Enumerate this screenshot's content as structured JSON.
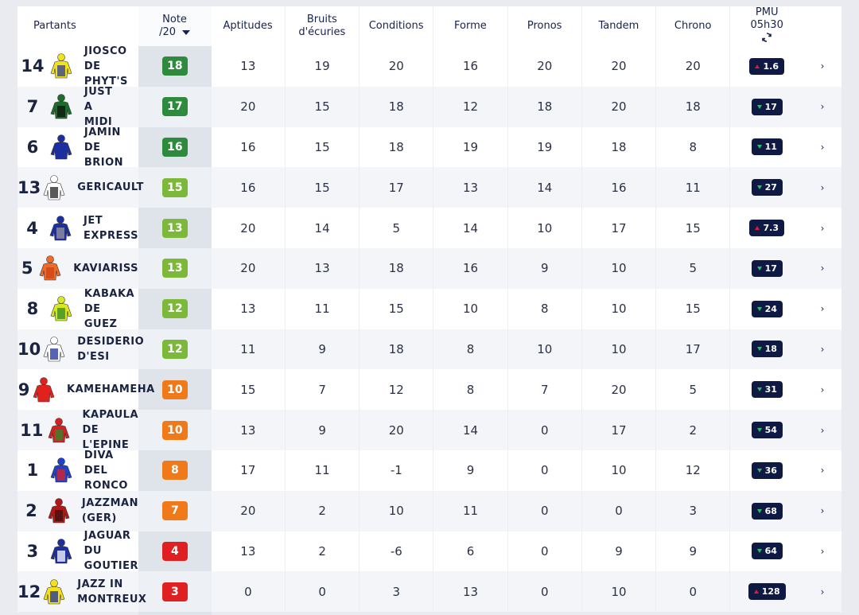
{
  "header": {
    "partants": "Partants",
    "note_line1": "Note",
    "note_line2": "/20",
    "aptitudes": "Aptitudes",
    "bruits_line1": "Bruits",
    "bruits_line2": "d'écuries",
    "conditions": "Conditions",
    "forme": "Forme",
    "pronos": "Pronos",
    "tandem": "Tandem",
    "chrono": "Chrono",
    "pmu_line1": "PMU",
    "pmu_line2": "05h30",
    "refresh_icon": "refresh-icon"
  },
  "colors": {
    "note_dark_green": "#2e8b3e",
    "note_light_green": "#7cb83a",
    "note_orange": "#f07a1a",
    "note_red": "#e02020",
    "odds_bg": "#0f1a44",
    "up": "#e3163b",
    "down": "#2dbb6e"
  },
  "rows": [
    {
      "num": "14",
      "name": "JIOSCO\nDE\nPHYT'S",
      "note": "18",
      "note_color": "#2e8b3e",
      "apt": "13",
      "bruits": "19",
      "cond": "20",
      "forme": "16",
      "pronos": "20",
      "tandem": "20",
      "chrono": "20",
      "odds": "1.6",
      "trend": "up",
      "silk": [
        "#f3e21a",
        "#2c3a9a"
      ]
    },
    {
      "num": "7",
      "name": "JUST\nA\nMIDI",
      "note": "17",
      "note_color": "#2e8b3e",
      "apt": "20",
      "bruits": "15",
      "cond": "18",
      "forme": "12",
      "pronos": "18",
      "tandem": "20",
      "chrono": "18",
      "odds": "17",
      "trend": "down",
      "silk": [
        "#1f6b2e",
        "#111111"
      ]
    },
    {
      "num": "6",
      "name": "JAMIN\nDE\nBRION",
      "note": "16",
      "note_color": "#2e8b3e",
      "apt": "16",
      "bruits": "15",
      "cond": "18",
      "forme": "19",
      "pronos": "19",
      "tandem": "18",
      "chrono": "8",
      "odds": "11",
      "trend": "down",
      "silk": [
        "#1d2f9e",
        "#1d2f9e"
      ]
    },
    {
      "num": "13",
      "name": "GERICAULT",
      "note": "15",
      "note_color": "#7cb83a",
      "apt": "16",
      "bruits": "15",
      "cond": "17",
      "forme": "13",
      "pronos": "14",
      "tandem": "16",
      "chrono": "11",
      "odds": "27",
      "trend": "down",
      "silk": [
        "#ffffff",
        "#222222"
      ]
    },
    {
      "num": "4",
      "name": "JET\nEXPRESS",
      "note": "13",
      "note_color": "#7cb83a",
      "apt": "20",
      "bruits": "14",
      "cond": "5",
      "forme": "14",
      "pronos": "10",
      "tandem": "17",
      "chrono": "15",
      "odds": "7.3",
      "trend": "up",
      "silk": [
        "#1d2f9e",
        "#9a9a9a"
      ]
    },
    {
      "num": "5",
      "name": "KAVIARISS",
      "note": "13",
      "note_color": "#7cb83a",
      "apt": "20",
      "bruits": "13",
      "cond": "18",
      "forme": "16",
      "pronos": "9",
      "tandem": "10",
      "chrono": "5",
      "odds": "17",
      "trend": "down",
      "silk": [
        "#f06a2a",
        "#c94515"
      ]
    },
    {
      "num": "8",
      "name": "KABAKA\nDE\nGUEZ",
      "note": "12",
      "note_color": "#7cb83a",
      "apt": "13",
      "bruits": "11",
      "cond": "15",
      "forme": "10",
      "pronos": "8",
      "tandem": "10",
      "chrono": "15",
      "odds": "24",
      "trend": "down",
      "silk": [
        "#d8e820",
        "#2c8a2c"
      ]
    },
    {
      "num": "10",
      "name": "DESIDERIO\nD'ESI",
      "note": "12",
      "note_color": "#7cb83a",
      "apt": "11",
      "bruits": "9",
      "cond": "18",
      "forme": "8",
      "pronos": "10",
      "tandem": "10",
      "chrono": "17",
      "odds": "18",
      "trend": "down",
      "silk": [
        "#ffffff",
        "#1d2f9e"
      ]
    },
    {
      "num": "9",
      "name": "KAMEHAMEHA",
      "note": "10",
      "note_color": "#f07a1a",
      "apt": "15",
      "bruits": "7",
      "cond": "12",
      "forme": "8",
      "pronos": "7",
      "tandem": "20",
      "chrono": "5",
      "odds": "31",
      "trend": "down",
      "silk": [
        "#e0221e",
        "#e0221e"
      ]
    },
    {
      "num": "11",
      "name": "KAPAULA\nDE\nL'EPINE",
      "note": "10",
      "note_color": "#f07a1a",
      "apt": "13",
      "bruits": "9",
      "cond": "20",
      "forme": "14",
      "pronos": "0",
      "tandem": "17",
      "chrono": "2",
      "odds": "54",
      "trend": "down",
      "silk": [
        "#d42020",
        "#2c8a2c"
      ]
    },
    {
      "num": "1",
      "name": "DIVA\nDEL\nRONCO",
      "note": "8",
      "note_color": "#f07a1a",
      "apt": "17",
      "bruits": "11",
      "cond": "-1",
      "forme": "9",
      "pronos": "0",
      "tandem": "10",
      "chrono": "12",
      "odds": "36",
      "trend": "down",
      "silk": [
        "#2040c8",
        "#e0221e"
      ]
    },
    {
      "num": "2",
      "name": "JAZZMAN\n(GER)",
      "note": "7",
      "note_color": "#f07a1a",
      "apt": "20",
      "bruits": "2",
      "cond": "10",
      "forme": "11",
      "pronos": "0",
      "tandem": "0",
      "chrono": "3",
      "odds": "68",
      "trend": "down",
      "silk": [
        "#b01818",
        "#3a1010"
      ]
    },
    {
      "num": "3",
      "name": "JAGUAR\nDU\nGOUTIER",
      "note": "4",
      "note_color": "#e02020",
      "apt": "13",
      "bruits": "2",
      "cond": "-6",
      "forme": "6",
      "pronos": "0",
      "tandem": "9",
      "chrono": "9",
      "odds": "64",
      "trend": "down",
      "silk": [
        "#1d2f9e",
        "#ffffff"
      ]
    },
    {
      "num": "12",
      "name": "JAZZ IN\nMONTREUX",
      "note": "3",
      "note_color": "#e02020",
      "apt": "0",
      "bruits": "0",
      "cond": "3",
      "forme": "13",
      "pronos": "0",
      "tandem": "10",
      "chrono": "0",
      "odds": "128",
      "trend": "up",
      "silk": [
        "#f3e21a",
        "#1d2f9e"
      ]
    }
  ]
}
